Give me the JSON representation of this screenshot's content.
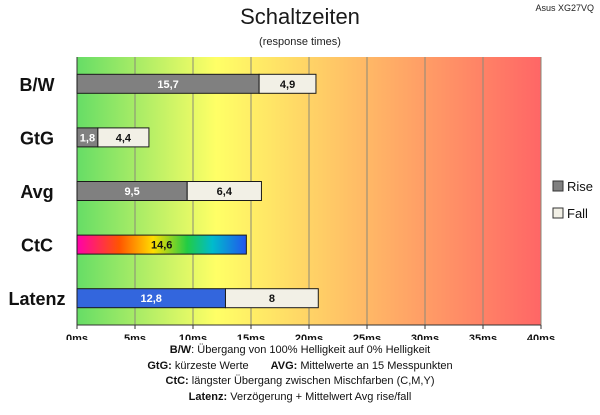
{
  "chart_data": {
    "type": "bar",
    "stacked": true,
    "orientation": "horizontal",
    "title": "Schaltzeiten",
    "subtitle": "(response times)",
    "badge": "Asus XG27VQ",
    "categories": [
      "B/W",
      "GtG",
      "Avg",
      "CtC",
      "Latenz"
    ],
    "series": [
      {
        "name": "Rise",
        "values": [
          15.7,
          1.8,
          9.5,
          14.6,
          12.8
        ],
        "labels": [
          "15,7",
          "1,8",
          "9,5",
          "14,6",
          "12,8"
        ]
      },
      {
        "name": "Fall",
        "values": [
          4.9,
          4.4,
          6.4,
          null,
          8
        ],
        "labels": [
          "4,9",
          "4,4",
          "6,4",
          "",
          "8"
        ]
      }
    ],
    "bar_styles": [
      "gray",
      "gray",
      "gray",
      "rainbow",
      "blue"
    ],
    "x_ticks": [
      "0ms",
      "5ms",
      "10ms",
      "15ms",
      "20ms",
      "25ms",
      "30ms",
      "35ms",
      "40ms"
    ],
    "xlim": [
      0,
      40
    ],
    "unit": "ms",
    "grid": true,
    "background_gradient": [
      "#66dd66",
      "#ffff66",
      "#ff6666"
    ],
    "legend_position": "right",
    "colors": {
      "rise": "#808080",
      "fall": "#f2f0e6",
      "latenz": "#3366dd",
      "border": "#1a1a1a"
    }
  },
  "notes": {
    "line1_key": "B/W",
    "line1_text": ":  Übergang von 100% Helligkeit auf 0% Helligkeit",
    "line2a_key": "GtG:",
    "line2a_text": " kürzeste  Werte",
    "line2b_key": "AVG:",
    "line2b_text": " Mittelwerte an 15 Messpunkten",
    "line3_key": "CtC:",
    "line3_text": " längster Übergang  zwischen Mischfarben (C,M,Y)",
    "line4_key": "Latenz:",
    "line4_text": " Verzögerung  + Mittelwert Avg rise/fall"
  }
}
